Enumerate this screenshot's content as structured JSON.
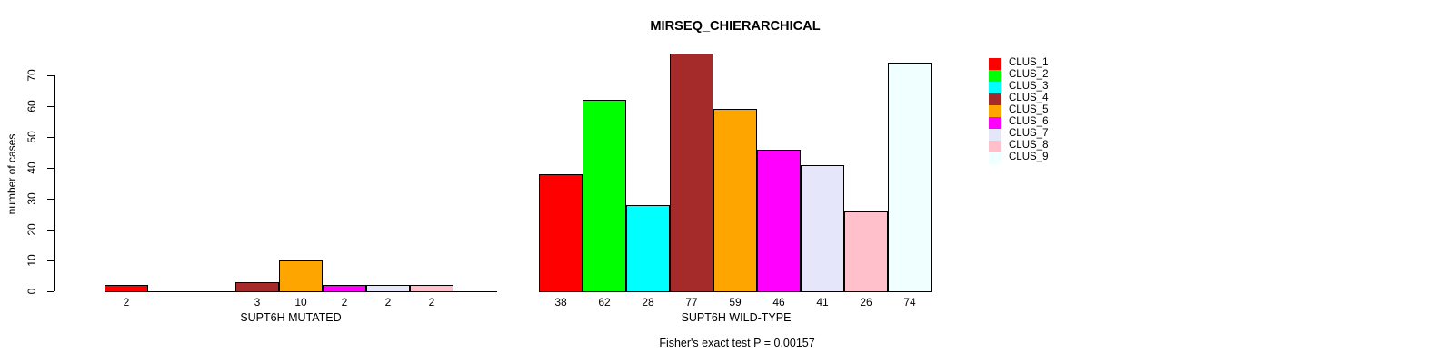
{
  "chart_data": {
    "type": "bar",
    "title": "MIRSEQ_CHIERARCHICAL",
    "ylabel": "number of cases",
    "ylim": [
      0,
      70
    ],
    "yticks": [
      0,
      10,
      20,
      30,
      40,
      50,
      60,
      70
    ],
    "grid": false,
    "legend_position": "right-outside-top",
    "categories": [
      "CLUS_1",
      "CLUS_2",
      "CLUS_3",
      "CLUS_4",
      "CLUS_5",
      "CLUS_6",
      "CLUS_7",
      "CLUS_8",
      "CLUS_9"
    ],
    "colors": [
      "#FF0000",
      "#00FF00",
      "#00FFFF",
      "#A52A2A",
      "#FFA500",
      "#FF00FF",
      "#E6E6FA",
      "#FFC0CB",
      "#F0FFFF"
    ],
    "groups": [
      {
        "label": "SUPT6H MUTATED",
        "values": [
          2,
          0,
          0,
          3,
          10,
          2,
          2,
          2,
          0
        ]
      },
      {
        "label": "SUPT6H WILD-TYPE",
        "values": [
          38,
          62,
          28,
          77,
          59,
          46,
          41,
          26,
          74
        ]
      }
    ],
    "annotation": "Fisher's exact test P = 0.00157"
  }
}
